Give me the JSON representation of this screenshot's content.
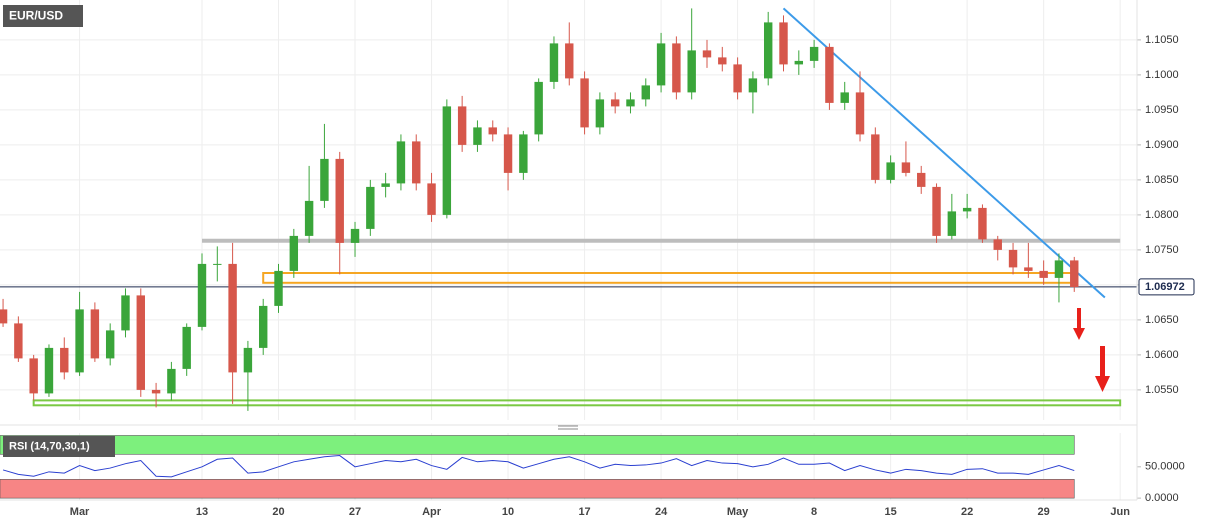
{
  "chart_data": {
    "type": "candlestick",
    "symbol": "EUR/USD",
    "up_color": "#3aa53a",
    "down_color": "#d6574b",
    "xlim": [
      -0.2,
      74.1
    ],
    "ylim": [
      1.0507,
      1.1107
    ],
    "grid": true,
    "xticks": [
      {
        "value": 5,
        "label": "Mar"
      },
      {
        "value": 13,
        "label": "13"
      },
      {
        "value": 18,
        "label": "20"
      },
      {
        "value": 23,
        "label": "27"
      },
      {
        "value": 28,
        "label": "Apr"
      },
      {
        "value": 33,
        "label": "10"
      },
      {
        "value": 38,
        "label": "17"
      },
      {
        "value": 43,
        "label": "24"
      },
      {
        "value": 48,
        "label": "May"
      },
      {
        "value": 53,
        "label": "8"
      },
      {
        "value": 58,
        "label": "15"
      },
      {
        "value": 63,
        "label": "22"
      },
      {
        "value": 68,
        "label": "29"
      },
      {
        "value": 73,
        "label": "Jun"
      }
    ],
    "yticks": [
      {
        "value": 1.055,
        "label": "1.0550"
      },
      {
        "value": 1.06,
        "label": "1.0600"
      },
      {
        "value": 1.065,
        "label": "1.0650"
      },
      {
        "value": 1.07,
        "label": "1.0700"
      },
      {
        "value": 1.075,
        "label": "1.0750"
      },
      {
        "value": 1.08,
        "label": "1.0800"
      },
      {
        "value": 1.085,
        "label": "1.0850"
      },
      {
        "value": 1.09,
        "label": "1.0900"
      },
      {
        "value": 1.095,
        "label": "1.0950"
      },
      {
        "value": 1.1,
        "label": "1.1000"
      },
      {
        "value": 1.105,
        "label": "1.1050"
      }
    ],
    "current_price": 1.06972,
    "ohlc": [
      [
        1.0665,
        1.068,
        1.064,
        1.0645
      ],
      [
        1.0645,
        1.0655,
        1.059,
        1.0595
      ],
      [
        1.0595,
        1.06,
        1.0535,
        1.0545
      ],
      [
        1.0545,
        1.0615,
        1.054,
        1.061
      ],
      [
        1.061,
        1.0625,
        1.0565,
        1.0575
      ],
      [
        1.0575,
        1.069,
        1.057,
        1.0665
      ],
      [
        1.0665,
        1.0675,
        1.059,
        1.0595
      ],
      [
        1.0595,
        1.0645,
        1.0585,
        1.0635
      ],
      [
        1.0635,
        1.0695,
        1.0625,
        1.0685
      ],
      [
        1.0685,
        1.0695,
        1.054,
        1.055
      ],
      [
        1.055,
        1.056,
        1.0525,
        1.0545
      ],
      [
        1.0545,
        1.059,
        1.0535,
        1.058
      ],
      [
        1.058,
        1.0645,
        1.057,
        1.064
      ],
      [
        1.064,
        1.0745,
        1.0635,
        1.073
      ],
      [
        1.073,
        1.0755,
        1.0705,
        1.073
      ],
      [
        1.073,
        1.076,
        1.053,
        1.0575
      ],
      [
        1.0575,
        1.062,
        1.052,
        1.061
      ],
      [
        1.061,
        1.068,
        1.06,
        1.067
      ],
      [
        1.067,
        1.073,
        1.066,
        1.072
      ],
      [
        1.072,
        1.078,
        1.071,
        1.077
      ],
      [
        1.077,
        1.087,
        1.076,
        1.082
      ],
      [
        1.082,
        1.093,
        1.081,
        1.088
      ],
      [
        1.088,
        1.089,
        1.0715,
        1.076
      ],
      [
        1.076,
        1.079,
        1.074,
        1.078
      ],
      [
        1.078,
        1.085,
        1.077,
        1.084
      ],
      [
        1.084,
        1.086,
        1.0825,
        1.0845
      ],
      [
        1.0845,
        1.0915,
        1.0835,
        1.0905
      ],
      [
        1.0905,
        1.0915,
        1.0835,
        1.0845
      ],
      [
        1.0845,
        1.086,
        1.079,
        1.08
      ],
      [
        1.08,
        1.0965,
        1.0795,
        1.0955
      ],
      [
        1.0955,
        1.097,
        1.089,
        1.09
      ],
      [
        1.09,
        1.0935,
        1.089,
        1.0925
      ],
      [
        1.0925,
        1.0935,
        1.0905,
        1.0915
      ],
      [
        1.0915,
        1.0925,
        1.0835,
        1.086
      ],
      [
        1.086,
        1.092,
        1.085,
        1.0915
      ],
      [
        1.0915,
        1.0995,
        1.0905,
        1.099
      ],
      [
        1.099,
        1.1055,
        1.098,
        1.1045
      ],
      [
        1.1045,
        1.1075,
        1.0985,
        1.0995
      ],
      [
        1.0995,
        1.1005,
        1.0915,
        1.0925
      ],
      [
        1.0925,
        1.0975,
        1.0915,
        1.0965
      ],
      [
        1.0965,
        1.0975,
        1.0945,
        1.0955
      ],
      [
        1.0955,
        1.0975,
        1.0945,
        1.0965
      ],
      [
        1.0965,
        1.0995,
        1.0955,
        1.0985
      ],
      [
        1.0985,
        1.106,
        1.0975,
        1.1045
      ],
      [
        1.1045,
        1.1055,
        1.0965,
        1.0975
      ],
      [
        1.0975,
        1.1095,
        1.0965,
        1.1035
      ],
      [
        1.1035,
        1.105,
        1.101,
        1.1025
      ],
      [
        1.1025,
        1.104,
        1.1005,
        1.1015
      ],
      [
        1.1015,
        1.1025,
        1.0965,
        1.0975
      ],
      [
        1.0975,
        1.1005,
        1.0945,
        1.0995
      ],
      [
        1.0995,
        1.109,
        1.0985,
        1.1075
      ],
      [
        1.1075,
        1.1085,
        1.1005,
        1.1015
      ],
      [
        1.1015,
        1.1035,
        1.1,
        1.102
      ],
      [
        1.102,
        1.105,
        1.101,
        1.104
      ],
      [
        1.104,
        1.1045,
        1.095,
        1.096
      ],
      [
        1.096,
        1.099,
        1.095,
        1.0975
      ],
      [
        1.0975,
        1.1005,
        1.0905,
        1.0915
      ],
      [
        1.0915,
        1.0925,
        1.0845,
        1.085
      ],
      [
        1.085,
        1.0885,
        1.0845,
        1.0875
      ],
      [
        1.0875,
        1.0905,
        1.0855,
        1.086
      ],
      [
        1.086,
        1.087,
        1.083,
        1.084
      ],
      [
        1.084,
        1.0845,
        1.076,
        1.077
      ],
      [
        1.077,
        1.083,
        1.0765,
        1.0805
      ],
      [
        1.0805,
        1.083,
        1.0795,
        1.081
      ],
      [
        1.081,
        1.0815,
        1.076,
        1.0765
      ],
      [
        1.0765,
        1.077,
        1.0735,
        1.075
      ],
      [
        1.075,
        1.076,
        1.0715,
        1.0725
      ],
      [
        1.0725,
        1.076,
        1.071,
        1.072
      ],
      [
        1.072,
        1.0735,
        1.07,
        1.071
      ],
      [
        1.071,
        1.0745,
        1.0675,
        1.0735
      ],
      [
        1.0735,
        1.074,
        1.069,
        1.0697
      ]
    ],
    "resistance_line": {
      "value": 1.0763,
      "x": [
        13,
        73
      ],
      "color": "#bdbdbd"
    },
    "zones": [
      {
        "range": [
          1.0703,
          1.0717
        ],
        "x": [
          17,
          70
        ],
        "color": "#f5a623"
      },
      {
        "range": [
          1.0528,
          1.0535
        ],
        "x": [
          2,
          73
        ],
        "color": "#7ac943"
      }
    ],
    "trendline": {
      "x": [
        51,
        72
      ],
      "y": [
        1.1095,
        1.0682
      ],
      "color": "#3d9be9"
    },
    "rsi": {
      "label": "RSI (14,70,30,1)",
      "color": "#2a3fd0",
      "ylim": [
        -3,
        104
      ],
      "yticks": [
        {
          "value": 0,
          "label": "0.0000"
        },
        {
          "value": 50,
          "label": "50.0000"
        }
      ],
      "bands": [
        {
          "range": [
            70,
            100
          ],
          "color": "#7df07d"
        },
        {
          "range": [
            0,
            30
          ],
          "color": "#f78585"
        }
      ],
      "values": [
        45,
        38,
        35,
        42,
        40,
        52,
        44,
        48,
        55,
        60,
        35,
        34,
        42,
        50,
        62,
        64,
        40,
        42,
        50,
        58,
        62,
        66,
        68,
        50,
        55,
        60,
        58,
        62,
        52,
        46,
        65,
        58,
        60,
        58,
        48,
        55,
        62,
        66,
        58,
        48,
        54,
        52,
        53,
        56,
        63,
        52,
        60,
        56,
        55,
        50,
        54,
        64,
        54,
        54,
        56,
        44,
        52,
        45,
        40,
        46,
        44,
        40,
        38,
        46,
        47,
        40,
        40,
        38,
        45,
        52,
        44
      ]
    }
  }
}
